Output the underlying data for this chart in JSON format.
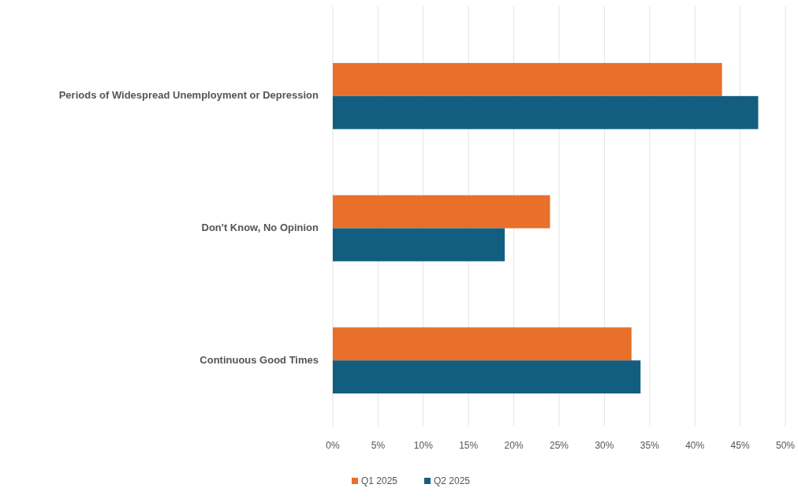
{
  "chart_data": {
    "type": "bar",
    "orientation": "horizontal",
    "categories": [
      "Periods of Widespread Unemployment or Depression",
      "Don't Know, No Opinion",
      "Continuous Good Times"
    ],
    "series": [
      {
        "name": "Q1 2025",
        "color": "#e8702a",
        "values": [
          43,
          24,
          33
        ]
      },
      {
        "name": "Q2 2025",
        "color": "#135e80",
        "values": [
          47,
          19,
          34
        ]
      }
    ],
    "xlim": [
      0,
      50
    ],
    "xticks": [
      {
        "value": 0,
        "label": "0%"
      },
      {
        "value": 5,
        "label": "5%"
      },
      {
        "value": 10,
        "label": "10%"
      },
      {
        "value": 15,
        "label": "15%"
      },
      {
        "value": 20,
        "label": "20%"
      },
      {
        "value": 25,
        "label": "25%"
      },
      {
        "value": 30,
        "label": "30%"
      },
      {
        "value": 35,
        "label": "35%"
      },
      {
        "value": 40,
        "label": "40%"
      },
      {
        "value": 45,
        "label": "45%"
      },
      {
        "value": 50,
        "label": "50%"
      }
    ],
    "grid": "x",
    "legend": "bottom"
  }
}
